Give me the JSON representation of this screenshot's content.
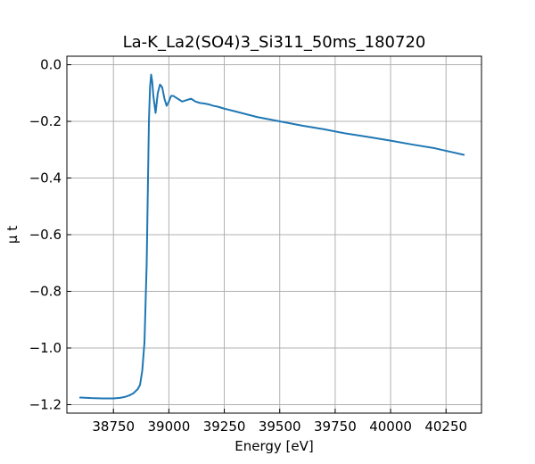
{
  "chart_data": {
    "type": "line",
    "title": "La-K_La2(SO4)3_Si311_50ms_180720",
    "xlabel": "Energy [eV]",
    "ylabel": "μ t",
    "xlim": [
      38540,
      40410
    ],
    "ylim": [
      -1.23,
      0.03
    ],
    "xticks": [
      38750,
      39000,
      39250,
      39500,
      39750,
      40000,
      40250
    ],
    "xtick_labels": [
      "38750",
      "39000",
      "39250",
      "39500",
      "39750",
      "40000",
      "40250"
    ],
    "yticks": [
      0.0,
      -0.2,
      -0.4,
      -0.6,
      -0.8,
      -1.0,
      -1.2
    ],
    "ytick_labels": [
      "0.0",
      "−0.2",
      "−0.4",
      "−0.6",
      "−0.8",
      "−1.0",
      "−1.2"
    ],
    "grid": true,
    "colors": {
      "line": "#1f77b4",
      "grid": "#b0b0b0",
      "axes": "#000000"
    },
    "series": [
      {
        "x": [
          38600,
          38650,
          38700,
          38750,
          38780,
          38800,
          38820,
          38840,
          38860,
          38870,
          38880,
          38890,
          38900,
          38905,
          38910,
          38915,
          38920,
          38925,
          38930,
          38940,
          38950,
          38960,
          38970,
          38980,
          38990,
          39000,
          39010,
          39020,
          39030,
          39040,
          39060,
          39080,
          39100,
          39120,
          39140,
          39160,
          39180,
          39200,
          39220,
          39250,
          39300,
          39400,
          39500,
          39600,
          39700,
          39800,
          39900,
          40000,
          40100,
          40200,
          40330
        ],
        "y": [
          -1.175,
          -1.177,
          -1.178,
          -1.178,
          -1.176,
          -1.173,
          -1.168,
          -1.16,
          -1.145,
          -1.13,
          -1.08,
          -0.98,
          -0.7,
          -0.45,
          -0.2,
          -0.08,
          -0.035,
          -0.06,
          -0.11,
          -0.17,
          -0.1,
          -0.07,
          -0.08,
          -0.12,
          -0.145,
          -0.13,
          -0.11,
          -0.11,
          -0.115,
          -0.12,
          -0.13,
          -0.125,
          -0.12,
          -0.13,
          -0.135,
          -0.137,
          -0.14,
          -0.145,
          -0.148,
          -0.155,
          -0.165,
          -0.185,
          -0.2,
          -0.215,
          -0.228,
          -0.243,
          -0.255,
          -0.268,
          -0.282,
          -0.295,
          -0.318
        ]
      }
    ]
  }
}
